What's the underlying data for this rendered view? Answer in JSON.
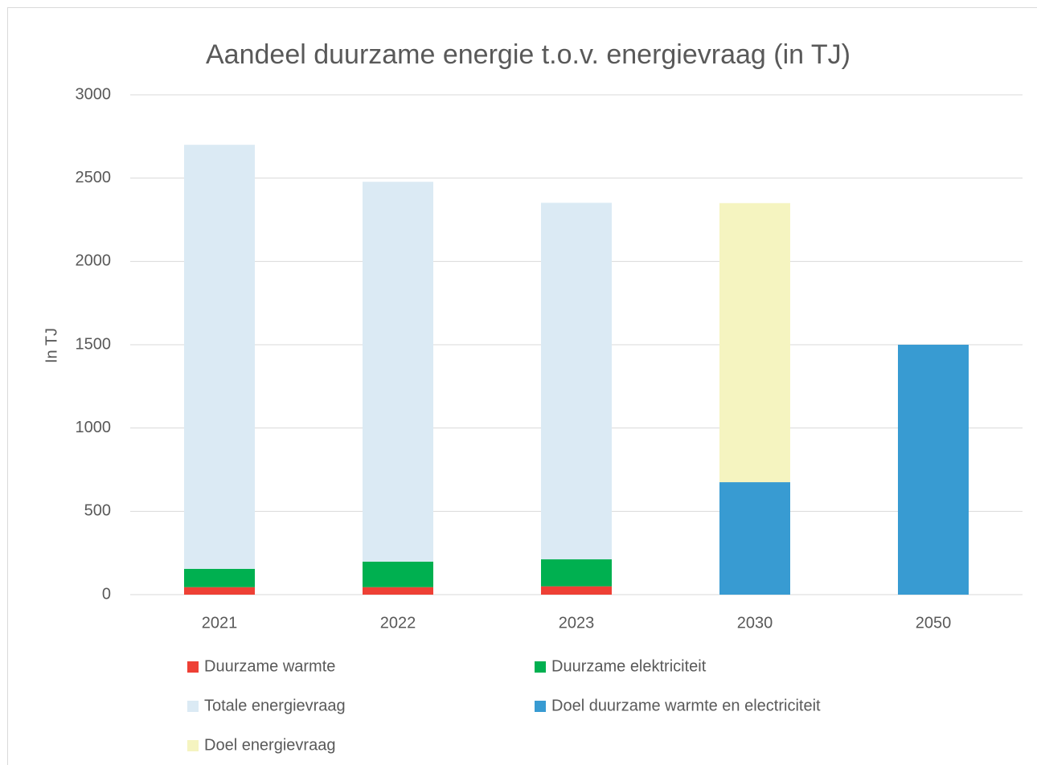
{
  "chart_data": {
    "type": "stacked_bar",
    "title": "Aandeel duurzame energie t.o.v. energievraag (in TJ)",
    "y_label": "In TJ",
    "categories": [
      "2021",
      "2022",
      "2023",
      "2030",
      "2050"
    ],
    "series": [
      {
        "name": "Duurzame warmte",
        "color": "#ee4035",
        "values": [
          45,
          45,
          50,
          null,
          null
        ]
      },
      {
        "name": "Duurzame elektriciteit",
        "color": "#00b050",
        "values": [
          110,
          153,
          162,
          null,
          null
        ]
      },
      {
        "name": "Totale energievraag",
        "color": "#dbeaf4",
        "values": [
          2545,
          2280,
          2140,
          null,
          null
        ]
      },
      {
        "name": "Doel duurzame warmte en electriciteit",
        "color": "#389bd2",
        "values": [
          null,
          null,
          null,
          675,
          1500
        ]
      },
      {
        "name": "Doel energievraag",
        "color": "#f5f4c0",
        "values": [
          null,
          null,
          null,
          1675,
          null
        ]
      }
    ],
    "ylim": [
      0,
      3000
    ],
    "yticks": [
      0,
      500,
      1000,
      1500,
      2000,
      2500,
      3000
    ],
    "grid": true
  }
}
